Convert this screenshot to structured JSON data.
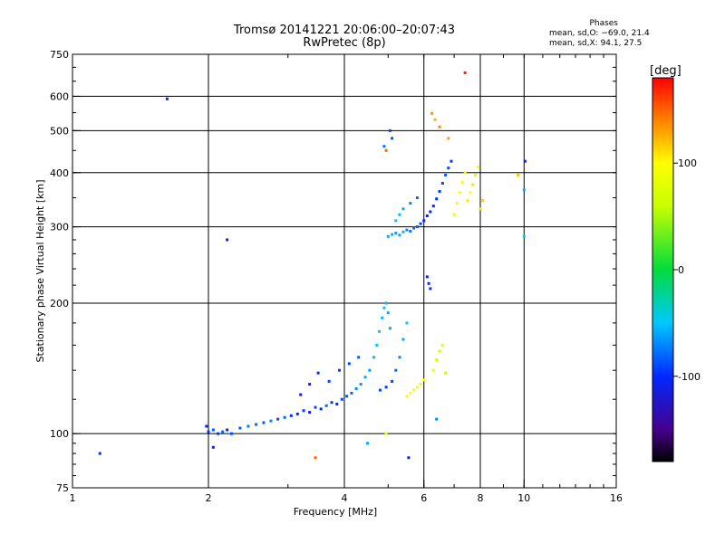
{
  "header": {
    "title_line1": "Tromsø 20141221 20:06:00–20:07:43",
    "title_line2": "RwPretec (8p)"
  },
  "phase_info": {
    "heading": "Phases",
    "o_mode": "mean, sd,O: −69.0, 21.4",
    "x_mode": "mean, sd,X:  94.1, 27.5"
  },
  "chart_data": {
    "type": "scatter",
    "xlabel": "Frequency [MHz]",
    "ylabel": "Stationary phase Virtual Height [km]",
    "x_scale": "log",
    "y_scale": "log",
    "xlim": [
      1,
      16
    ],
    "ylim": [
      75,
      750
    ],
    "x_ticks": [
      1,
      2,
      4,
      6,
      8,
      10,
      16
    ],
    "x_tick_labels": [
      "1",
      "2",
      "4",
      "6",
      "8",
      "10",
      "16"
    ],
    "x_grid": [
      2,
      4,
      6,
      8,
      10
    ],
    "y_ticks": [
      75,
      100,
      200,
      300,
      400,
      500,
      600,
      750
    ],
    "y_tick_labels": [
      "75",
      "100",
      "200",
      "300",
      "400",
      "500",
      "600",
      "750"
    ],
    "y_grid": [
      100,
      200,
      300,
      400,
      500,
      600
    ],
    "grid": true,
    "colorbar": {
      "label": "[deg]",
      "range": [
        -180,
        180
      ],
      "ticks": [
        100,
        0,
        -100
      ],
      "tick_labels": [
        "100",
        "0",
        "-100"
      ]
    },
    "series": [
      {
        "points": [
          [
            1.15,
            90,
            -100
          ],
          [
            1.62,
            592,
            -110
          ],
          [
            1.98,
            104,
            -110
          ],
          [
            2.0,
            101,
            -95
          ],
          [
            2.05,
            102,
            -85
          ],
          [
            2.1,
            100,
            -95
          ],
          [
            2.15,
            101,
            -80
          ],
          [
            2.2,
            102,
            -100
          ],
          [
            2.25,
            100,
            -90
          ],
          [
            2.35,
            103,
            -85
          ],
          [
            2.45,
            104,
            -75
          ],
          [
            2.55,
            105,
            -80
          ],
          [
            2.65,
            106,
            -85
          ],
          [
            2.75,
            107,
            -70
          ],
          [
            2.85,
            108,
            -90
          ],
          [
            2.95,
            109,
            -80
          ],
          [
            3.05,
            110,
            -100
          ],
          [
            3.15,
            111,
            -105
          ],
          [
            3.25,
            113,
            -95
          ],
          [
            3.35,
            112,
            -110
          ],
          [
            3.45,
            115,
            -90
          ],
          [
            3.55,
            114,
            -100
          ],
          [
            3.65,
            116,
            -80
          ],
          [
            3.75,
            118,
            -95
          ],
          [
            3.85,
            117,
            -100
          ],
          [
            3.95,
            120,
            -90
          ],
          [
            4.05,
            122,
            -85
          ],
          [
            4.15,
            124,
            -80
          ],
          [
            4.25,
            127,
            -70
          ],
          [
            4.35,
            130,
            -65
          ],
          [
            4.45,
            135,
            -60
          ],
          [
            4.55,
            140,
            -65
          ],
          [
            4.65,
            150,
            -55
          ],
          [
            4.72,
            160,
            -50
          ],
          [
            4.78,
            172,
            -50
          ],
          [
            4.85,
            185,
            -55
          ],
          [
            4.9,
            195,
            -50
          ],
          [
            4.95,
            200,
            -55
          ],
          [
            5.0,
            190,
            -60
          ],
          [
            5.05,
            175,
            -60
          ],
          [
            4.8,
            126,
            -90
          ],
          [
            4.95,
            128,
            -95
          ],
          [
            5.1,
            132,
            -90
          ],
          [
            5.2,
            140,
            -80
          ],
          [
            5.3,
            150,
            -70
          ],
          [
            5.4,
            165,
            -60
          ],
          [
            5.5,
            180,
            -50
          ],
          [
            5.5,
            122,
            95
          ],
          [
            5.6,
            124,
            100
          ],
          [
            5.7,
            126,
            90
          ],
          [
            5.8,
            128,
            95
          ],
          [
            5.9,
            130,
            85
          ],
          [
            6.0,
            133,
            100
          ],
          [
            6.3,
            140,
            80
          ],
          [
            6.4,
            148,
            75
          ],
          [
            6.5,
            155,
            70
          ],
          [
            6.6,
            160,
            85
          ],
          [
            6.7,
            138,
            60
          ],
          [
            3.2,
            123,
            -110
          ],
          [
            3.35,
            130,
            -105
          ],
          [
            3.5,
            138,
            -100
          ],
          [
            3.7,
            132,
            -90
          ],
          [
            3.9,
            140,
            -95
          ],
          [
            4.1,
            145,
            -90
          ],
          [
            4.3,
            150,
            -85
          ],
          [
            5.0,
            285,
            -60
          ],
          [
            5.1,
            288,
            -55
          ],
          [
            5.2,
            290,
            -65
          ],
          [
            5.3,
            287,
            -60
          ],
          [
            5.4,
            292,
            -55
          ],
          [
            5.5,
            295,
            -70
          ],
          [
            5.6,
            293,
            -75
          ],
          [
            5.7,
            298,
            -80
          ],
          [
            5.8,
            300,
            -85
          ],
          [
            5.9,
            305,
            -90
          ],
          [
            6.0,
            310,
            -100
          ],
          [
            6.1,
            318,
            -105
          ],
          [
            6.2,
            325,
            -110
          ],
          [
            6.3,
            335,
            -105
          ],
          [
            6.4,
            348,
            -100
          ],
          [
            6.5,
            362,
            -95
          ],
          [
            6.6,
            378,
            -90
          ],
          [
            6.7,
            395,
            -85
          ],
          [
            6.8,
            410,
            -90
          ],
          [
            6.9,
            425,
            -95
          ],
          [
            5.2,
            310,
            -50
          ],
          [
            5.3,
            320,
            -55
          ],
          [
            5.4,
            330,
            -60
          ],
          [
            5.6,
            340,
            -70
          ],
          [
            5.8,
            350,
            -80
          ],
          [
            7.0,
            320,
            85
          ],
          [
            7.1,
            340,
            90
          ],
          [
            7.2,
            360,
            95
          ],
          [
            7.3,
            380,
            100
          ],
          [
            7.4,
            400,
            95
          ],
          [
            7.5,
            345,
            105
          ],
          [
            7.6,
            360,
            100
          ],
          [
            7.7,
            375,
            110
          ],
          [
            7.8,
            395,
            105
          ],
          [
            7.9,
            412,
            100
          ],
          [
            8.0,
            330,
            110
          ],
          [
            8.1,
            345,
            115
          ],
          [
            6.1,
            230,
            -110
          ],
          [
            6.15,
            222,
            -105
          ],
          [
            6.2,
            216,
            -100
          ],
          [
            5.05,
            500,
            -90
          ],
          [
            5.1,
            480,
            -85
          ],
          [
            4.9,
            460,
            -75
          ],
          [
            4.95,
            450,
            150
          ],
          [
            6.25,
            548,
            135
          ],
          [
            6.35,
            530,
            125
          ],
          [
            6.5,
            510,
            140
          ],
          [
            6.8,
            480,
            130
          ],
          [
            7.4,
            680,
            170
          ],
          [
            9.7,
            395,
            120
          ],
          [
            10.05,
            425,
            -110
          ],
          [
            10.0,
            365,
            -60
          ],
          [
            10.0,
            285,
            -50
          ],
          [
            2.2,
            280,
            -100
          ],
          [
            2.05,
            93,
            -110
          ],
          [
            3.45,
            88,
            150
          ],
          [
            4.5,
            95,
            -60
          ],
          [
            5.55,
            88,
            -110
          ],
          [
            6.4,
            108,
            -70
          ],
          [
            4.95,
            100,
            90
          ]
        ]
      }
    ]
  }
}
